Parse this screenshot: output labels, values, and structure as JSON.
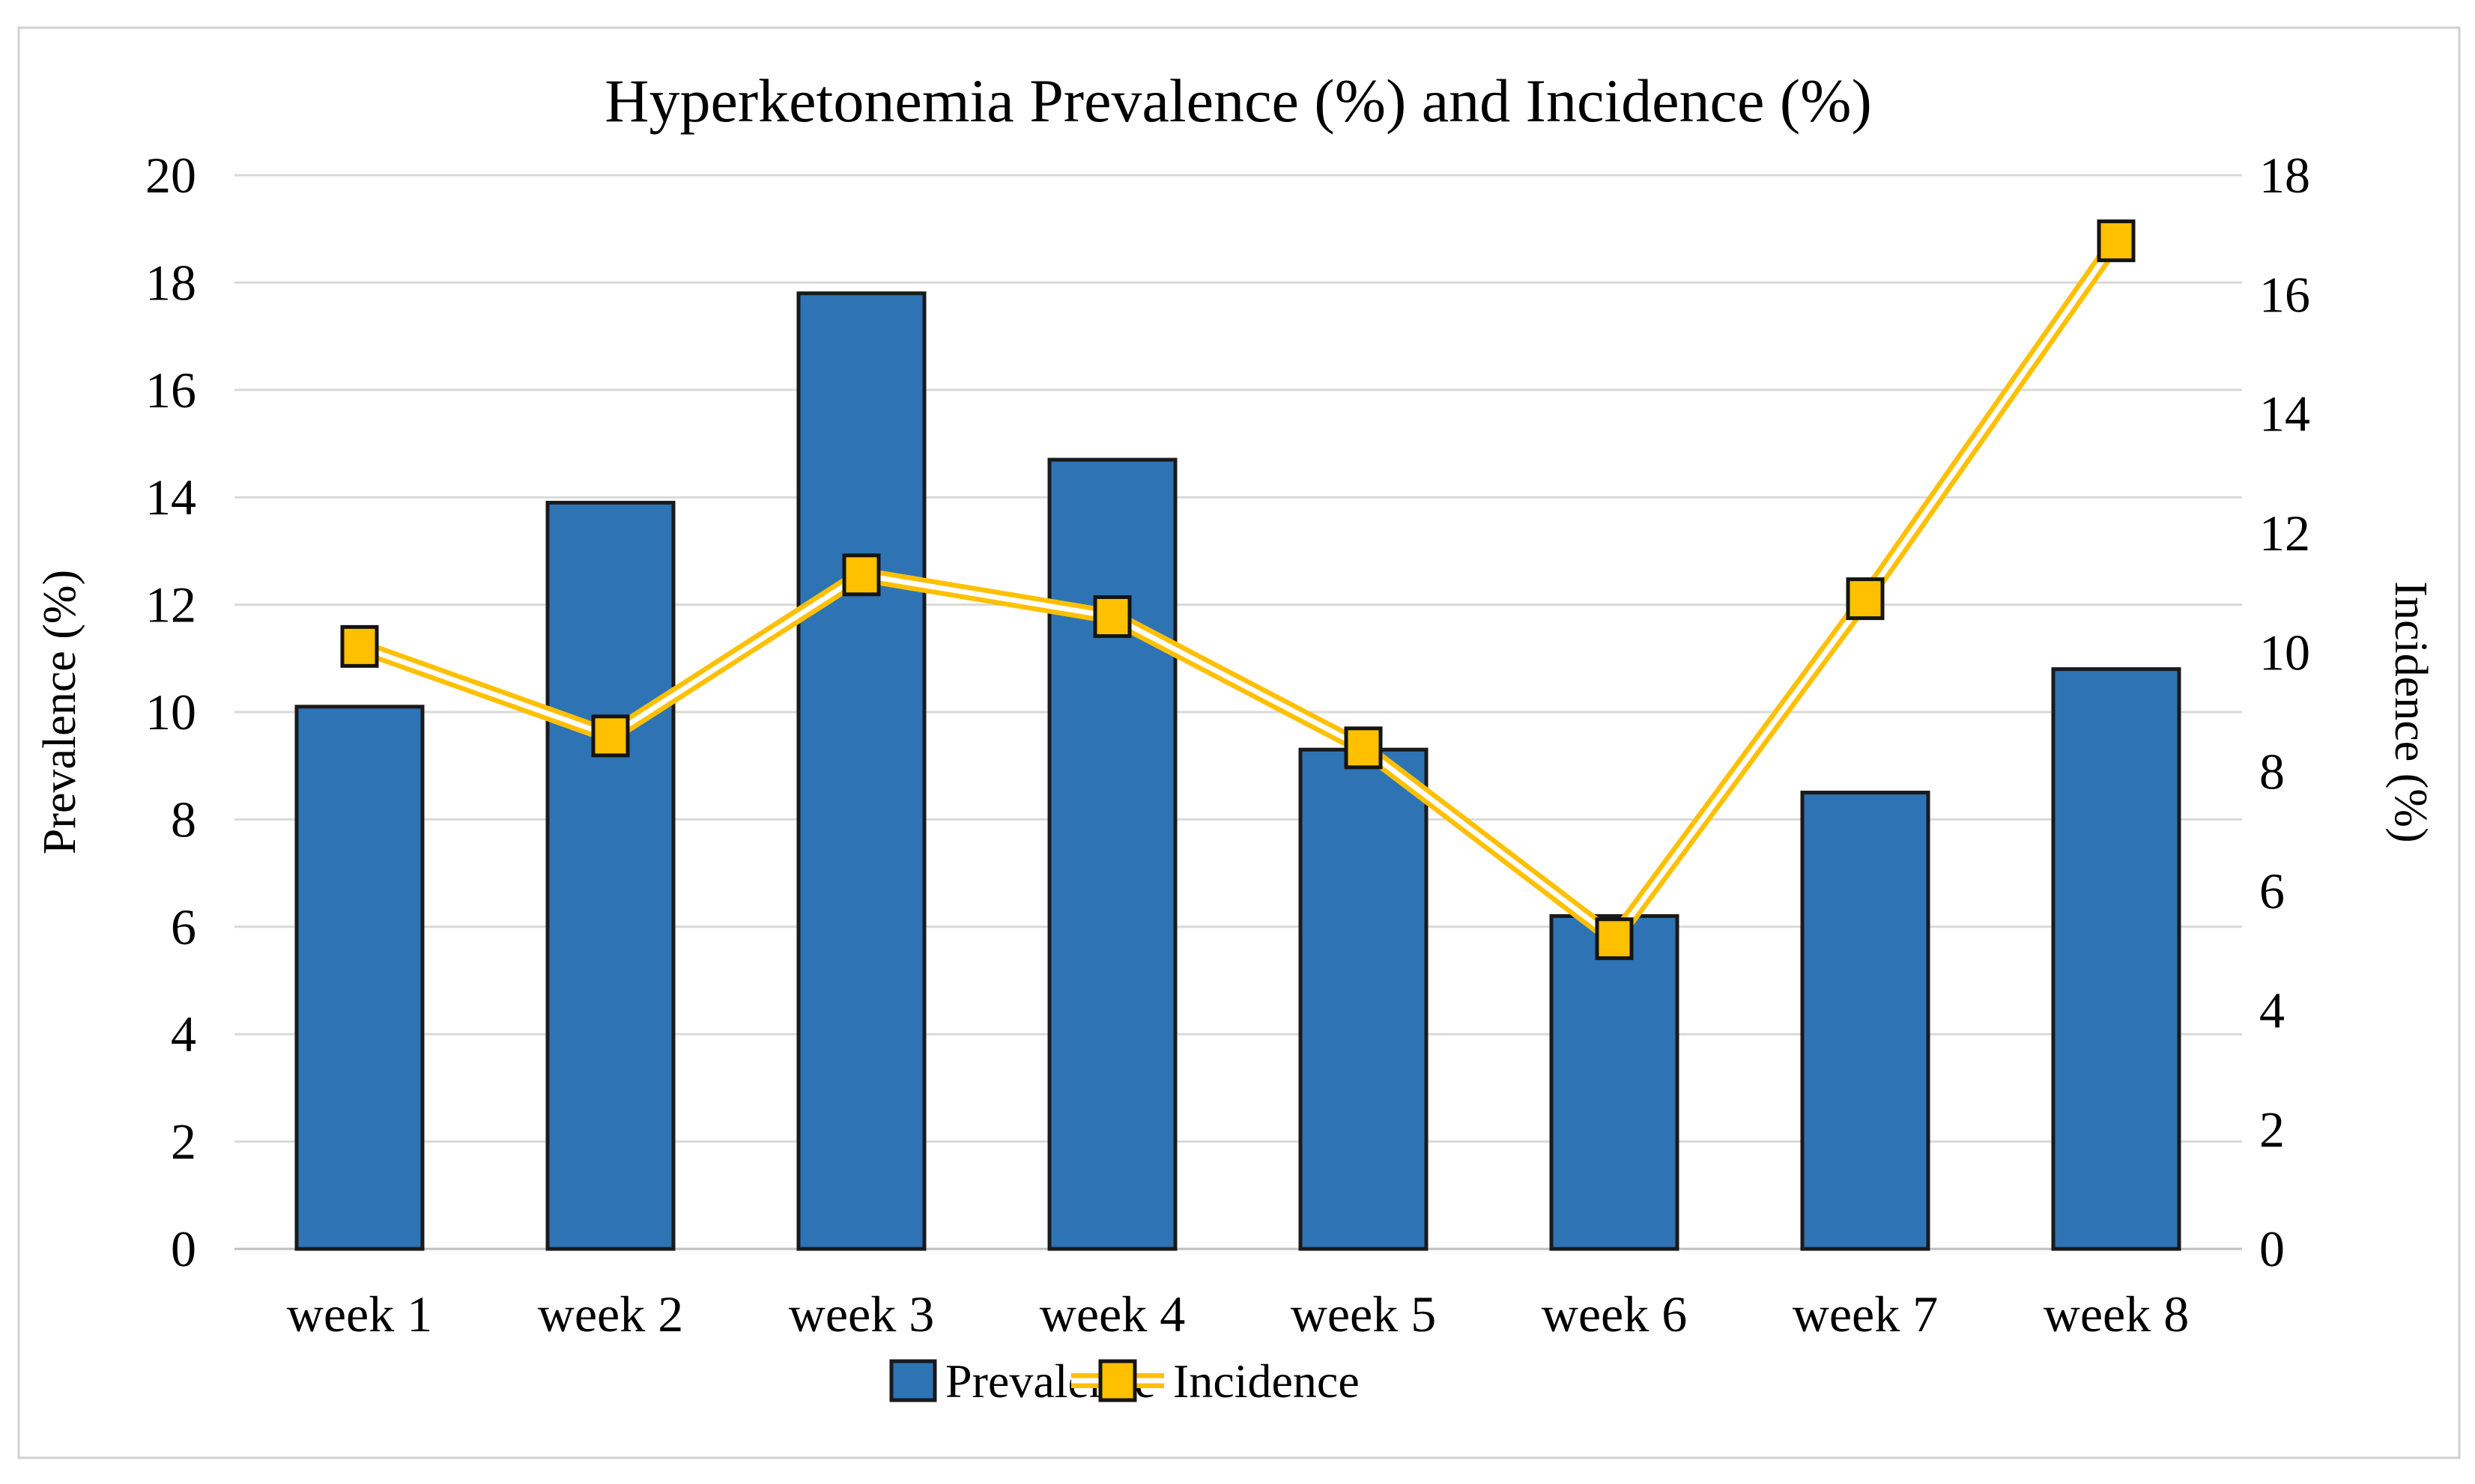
{
  "chart_data": {
    "type": "combo-bar-line-dual-axis",
    "title": "Hyperketonemia Prevalence (%) and Incidence (%)",
    "categories": [
      "week 1",
      "week 2",
      "week 3",
      "week 4",
      "week 5",
      "week 6",
      "week 7",
      "week 8"
    ],
    "series": [
      {
        "name": "Prevalence",
        "type": "bar",
        "axis": "left",
        "values": [
          10.1,
          13.9,
          17.8,
          14.7,
          9.3,
          6.2,
          8.5,
          10.8
        ]
      },
      {
        "name": "Incidence",
        "type": "line",
        "axis": "right",
        "marker": "square",
        "values": [
          10.1,
          8.6,
          11.3,
          10.6,
          8.4,
          5.2,
          10.9,
          16.9
        ]
      }
    ],
    "axes": {
      "left": {
        "label": "Prevalence (%)",
        "min": 0,
        "max": 20,
        "step": 2,
        "ticks": [
          "0",
          "2",
          "4",
          "6",
          "8",
          "10",
          "12",
          "14",
          "16",
          "18",
          "20"
        ]
      },
      "right": {
        "label": "Incidence (%)",
        "min": 0,
        "max": 18,
        "step": 2,
        "ticks": [
          "0",
          "2",
          "4",
          "6",
          "8",
          "10",
          "12",
          "14",
          "16",
          "18"
        ]
      }
    },
    "legend": {
      "position": "bottom",
      "items": [
        "Prevalence",
        "Incidence"
      ]
    },
    "grid": "horizontal",
    "colors": {
      "bar_fill": "#2E74B5",
      "bar_border": "#1A1A1A",
      "line": "#FFC000",
      "line_inner": "#FFFFFF",
      "marker_fill": "#FFC000",
      "marker_border": "#141414",
      "gridline": "#D9D9D9",
      "axis_line": "#BFBFBF",
      "text": "#000000",
      "figure_border": "#D0D0D0"
    }
  }
}
